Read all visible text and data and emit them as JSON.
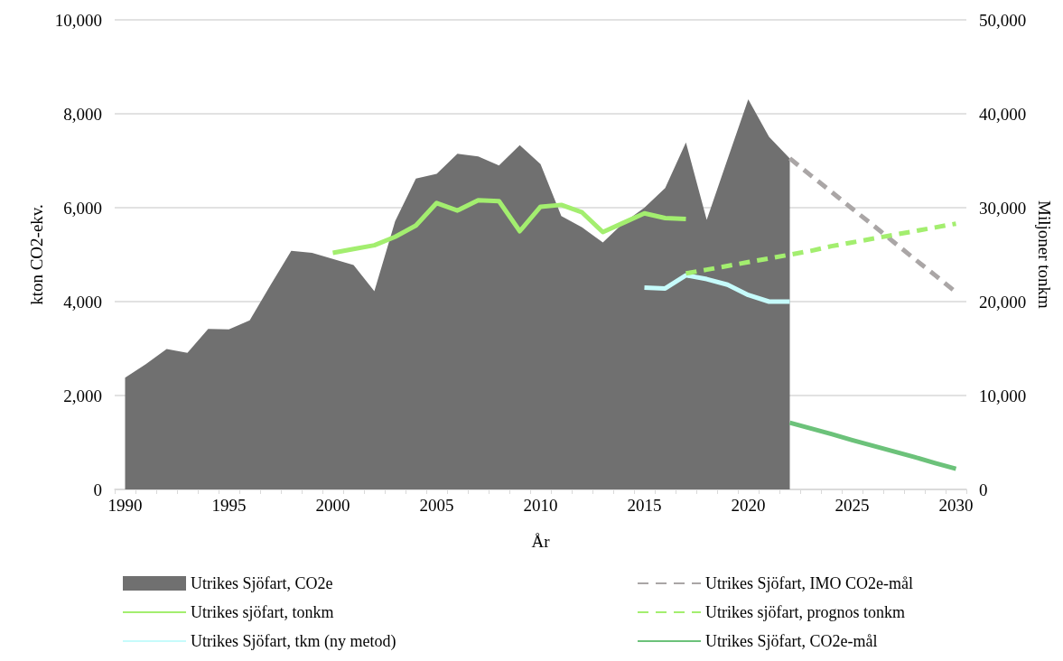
{
  "chart_data": {
    "type": "area",
    "xlabel": "År",
    "ylabel": "kton CO2-ekv.",
    "y2label": "Miljoner tonkm",
    "categories": [
      "1990",
      null,
      null,
      null,
      null,
      "1995",
      null,
      null,
      null,
      null,
      "2000",
      null,
      null,
      null,
      null,
      "2005",
      null,
      null,
      null,
      null,
      "2010",
      null,
      null,
      null,
      null,
      "2015",
      null,
      null,
      null,
      null,
      "2020",
      null,
      null,
      null,
      null,
      "2025",
      null,
      null,
      null,
      null,
      "2030"
    ],
    "series": [
      {
        "name": "Utrikes Sjöfart, CO2e",
        "color": "#707070",
        "values": [
          2380,
          2670,
          2990,
          2910,
          3420,
          3410,
          3600,
          4350,
          5080,
          5040,
          4910,
          4780,
          4220,
          5710,
          6620,
          6720,
          7150,
          7090,
          6900,
          7330,
          6930,
          5820,
          5580,
          5260,
          5680,
          6000,
          6420,
          7390,
          5740,
          7030,
          8310,
          7510,
          7050,
          null,
          null,
          null,
          null,
          null,
          null,
          null,
          null
        ]
      },
      {
        "name": "Utrikes sjöfart, tonkm",
        "type": "line",
        "axis": "y2",
        "color": "#a3ee6f",
        "line_style": "solid",
        "values": [
          null,
          null,
          null,
          null,
          null,
          null,
          null,
          null,
          null,
          null,
          25200,
          25600,
          26000,
          26900,
          28100,
          30500,
          29700,
          30800,
          30700,
          27500,
          30100,
          30300,
          29500,
          27400,
          28400,
          29400,
          28900,
          28800,
          null,
          null,
          null,
          null,
          null,
          null,
          null,
          null,
          null,
          null,
          null,
          null,
          null
        ]
      },
      {
        "name": "Utrikes Sjöfart, tkm (ny metod)",
        "type": "line",
        "axis": "y2",
        "color": "#c6fbfb",
        "line_style": "solid",
        "values": [
          null,
          null,
          null,
          null,
          null,
          null,
          null,
          null,
          null,
          null,
          null,
          null,
          null,
          null,
          null,
          null,
          null,
          null,
          null,
          null,
          null,
          null,
          null,
          null,
          null,
          21500,
          21400,
          22800,
          22400,
          21800,
          20700,
          20000,
          20000,
          null,
          null,
          null,
          null,
          null,
          null,
          null,
          null
        ]
      },
      {
        "name": "Utrikes Sjöfart, IMO CO2e-mål",
        "type": "line",
        "color": "#aaa6a6",
        "line_style": "dashed",
        "values": [
          null,
          null,
          null,
          null,
          null,
          null,
          null,
          null,
          null,
          null,
          null,
          null,
          null,
          null,
          null,
          null,
          null,
          null,
          null,
          null,
          null,
          null,
          null,
          null,
          null,
          null,
          null,
          null,
          null,
          null,
          null,
          null,
          7050,
          6690,
          6340,
          5980,
          5630,
          5270,
          4910,
          4560,
          4200
        ]
      },
      {
        "name": "Utrikes sjöfart, prognos tonkm",
        "type": "line",
        "axis": "y2",
        "color": "#a3ee6f",
        "line_style": "dashed",
        "values": [
          null,
          null,
          null,
          null,
          null,
          null,
          null,
          null,
          null,
          null,
          null,
          null,
          null,
          null,
          null,
          null,
          null,
          null,
          null,
          null,
          null,
          null,
          null,
          null,
          null,
          null,
          null,
          23000,
          23400,
          23800,
          24200,
          24600,
          25000,
          25400,
          25900,
          26300,
          26700,
          27100,
          27500,
          27900,
          28300
        ]
      },
      {
        "name": "Utrikes Sjöfart, CO2e-mål",
        "type": "line",
        "color": "#6cc27a",
        "line_style": "solid",
        "values": [
          null,
          null,
          null,
          null,
          null,
          null,
          null,
          null,
          null,
          null,
          null,
          null,
          null,
          null,
          null,
          null,
          null,
          null,
          null,
          null,
          null,
          null,
          null,
          null,
          null,
          null,
          null,
          null,
          null,
          null,
          null,
          null,
          1420,
          1300,
          1180,
          1050,
          930,
          810,
          690,
          560,
          440
        ]
      }
    ],
    "ylim": [
      0,
      10000
    ],
    "yticks": [
      0,
      {
        "value": 2000,
        "label": "2,000"
      },
      {
        "value": 4000,
        "label": "4,000"
      },
      {
        "value": 6000,
        "label": "6,000"
      },
      {
        "value": 8000,
        "label": "8,000"
      },
      {
        "value": 10000,
        "label": "10,000"
      }
    ],
    "y2lim": [
      0,
      50000
    ],
    "y2ticks": [
      0,
      {
        "value": 10000,
        "label": "10,000"
      },
      {
        "value": 20000,
        "label": "20,000"
      },
      {
        "value": 30000,
        "label": "30,000"
      },
      {
        "value": 40000,
        "label": "40,000"
      },
      {
        "value": 50000,
        "label": "50,000"
      }
    ],
    "grid": "y",
    "legend": "bottom",
    "marker": "none"
  }
}
